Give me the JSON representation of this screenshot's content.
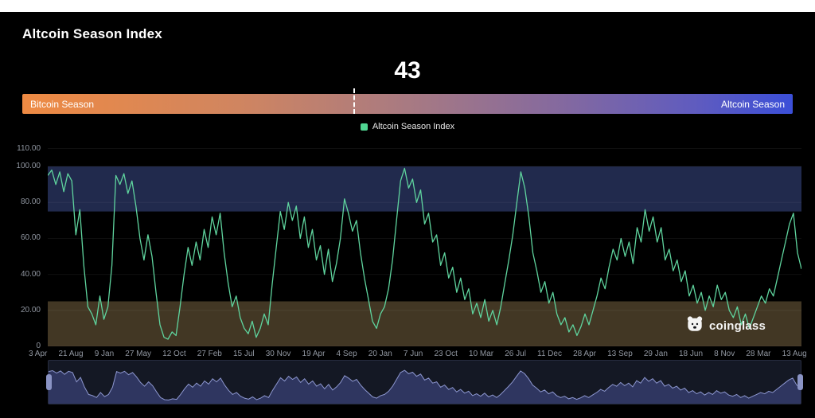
{
  "page": {
    "title": "Altcoin Season Index",
    "current_value": "43"
  },
  "season_bar": {
    "left_label": "Bitcoin Season",
    "right_label": "Altcoin Season",
    "marker_percent": 43,
    "gradient_stops": [
      "#ee8a43 0%",
      "#d08560 28%",
      "#a87a82 50%",
      "#84699f 70%",
      "#5e5bc0 88%",
      "#3b4fd8 100%"
    ]
  },
  "legend": {
    "label": "Altcoin Season Index",
    "marker_color": "#50d592"
  },
  "watermark": {
    "text": "coinglass"
  },
  "navigator": {
    "fill_color": "#2f3660",
    "line_color": "#8d97cf"
  },
  "chart_data": {
    "type": "line",
    "title": "Altcoin Season Index",
    "xlabel": "",
    "ylabel": "",
    "ylim": [
      0,
      112
    ],
    "grid": true,
    "legend_position": "top-center",
    "line_color": "#5fd49e",
    "y_ticks": [
      "110.00",
      "100.00",
      "80.00",
      "60.00",
      "40.00",
      "20.00",
      "0"
    ],
    "y_tick_values": [
      110,
      100,
      80,
      60,
      40,
      20,
      0
    ],
    "x_tick_labels": [
      "3 Apr",
      "21 Aug",
      "9 Jan",
      "27 May",
      "12 Oct",
      "27 Feb",
      "15 Jul",
      "30 Nov",
      "19 Apr",
      "4 Sep",
      "20 Jan",
      "7 Jun",
      "23 Oct",
      "10 Mar",
      "26 Jul",
      "11 Dec",
      "28 Apr",
      "13 Sep",
      "29 Jan",
      "18 Jun",
      "8 Nov",
      "28 Mar",
      "13 Aug"
    ],
    "bands": [
      {
        "name": "altcoin-season-zone",
        "from": 75,
        "to": 100,
        "color": "#212a4d"
      },
      {
        "name": "bitcoin-season-zone",
        "from": 0,
        "to": 25,
        "color": "#423724"
      }
    ],
    "values": [
      95,
      98,
      90,
      97,
      86,
      96,
      92,
      62,
      76,
      45,
      22,
      18,
      12,
      28,
      15,
      22,
      45,
      95,
      90,
      96,
      85,
      92,
      78,
      60,
      48,
      62,
      50,
      30,
      12,
      5,
      4,
      8,
      6,
      22,
      40,
      55,
      45,
      58,
      48,
      65,
      55,
      72,
      62,
      74,
      52,
      35,
      22,
      28,
      16,
      10,
      7,
      14,
      5,
      10,
      18,
      12,
      35,
      55,
      75,
      65,
      80,
      70,
      78,
      60,
      72,
      55,
      65,
      48,
      56,
      40,
      54,
      36,
      46,
      60,
      82,
      74,
      64,
      70,
      52,
      38,
      26,
      14,
      10,
      18,
      22,
      32,
      48,
      70,
      92,
      99,
      88,
      93,
      80,
      87,
      68,
      74,
      58,
      62,
      45,
      52,
      38,
      44,
      30,
      38,
      26,
      32,
      18,
      24,
      16,
      26,
      14,
      20,
      12,
      22,
      35,
      48,
      62,
      80,
      97,
      88,
      72,
      52,
      42,
      30,
      36,
      24,
      30,
      18,
      12,
      16,
      8,
      12,
      6,
      11,
      18,
      12,
      20,
      28,
      38,
      32,
      44,
      54,
      48,
      60,
      50,
      58,
      46,
      66,
      58,
      76,
      64,
      72,
      58,
      66,
      48,
      54,
      42,
      48,
      36,
      42,
      28,
      34,
      24,
      30,
      20,
      28,
      22,
      34,
      26,
      30,
      20,
      16,
      22,
      12,
      18,
      10,
      16,
      22,
      28,
      24,
      32,
      28,
      38,
      48,
      58,
      68,
      74,
      52,
      43
    ]
  }
}
